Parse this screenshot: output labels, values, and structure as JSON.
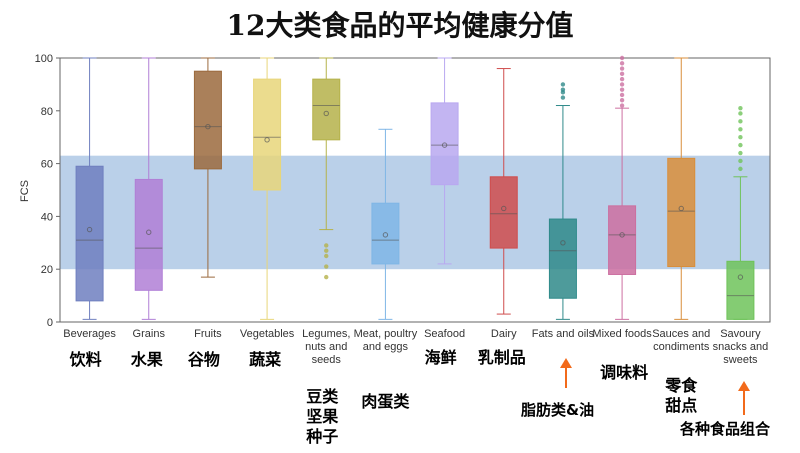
{
  "chart_data": {
    "type": "box",
    "title": "12大类食品的平均健康分值",
    "ylabel": "FCS",
    "xlabel": "",
    "ylim": [
      0,
      100
    ],
    "yticks": [
      0,
      20,
      40,
      60,
      80,
      100
    ],
    "reference_band": [
      20,
      63
    ],
    "categories": [
      {
        "label": "Beverages",
        "zh": "饮料",
        "color": "#6f7fbf",
        "min": 1,
        "q1": 8,
        "median": 31,
        "mean": 35,
        "q3": 59,
        "max": 100,
        "outliers": []
      },
      {
        "label": "Grains",
        "zh": "水果",
        "color": "#b07fd6",
        "min": 1,
        "q1": 12,
        "median": 28,
        "mean": 34,
        "q3": 54,
        "max": 100,
        "outliers": []
      },
      {
        "label": "Fruits",
        "zh": "谷物",
        "color": "#9b6a3d",
        "min": 17,
        "q1": 58,
        "median": 74,
        "mean": 74,
        "q3": 95,
        "max": 100,
        "outliers": []
      },
      {
        "label": "Vegetables",
        "zh": "蔬菜",
        "color": "#e8d67a",
        "min": 1,
        "q1": 50,
        "median": 70,
        "mean": 69,
        "q3": 92,
        "max": 100,
        "outliers": []
      },
      {
        "label": "Legumes, nuts and seeds",
        "zh": "豆类\n坚果\n种子",
        "color": "#b5b24a",
        "min": 35,
        "q1": 69,
        "median": 82,
        "mean": 79,
        "q3": 92,
        "max": 100,
        "outliers": [
          17,
          21,
          25,
          27,
          29
        ]
      },
      {
        "label": "Meat, poultry and eggs",
        "zh": "肉蛋类",
        "color": "#7fb6e6",
        "min": 1,
        "q1": 22,
        "median": 31,
        "mean": 33,
        "q3": 45,
        "max": 73,
        "outliers": []
      },
      {
        "label": "Seafood",
        "zh": "海鲜",
        "color": "#b9a8f0",
        "min": 22,
        "q1": 52,
        "median": 67,
        "mean": 67,
        "q3": 83,
        "max": 100,
        "outliers": []
      },
      {
        "label": "Dairy",
        "zh": "乳制品",
        "color": "#cf4c4c",
        "min": 3,
        "q1": 28,
        "median": 41,
        "mean": 43,
        "q3": 55,
        "max": 96,
        "outliers": []
      },
      {
        "label": "Fats and oils",
        "zh": "",
        "color": "#2f8a8a",
        "min": 1,
        "q1": 9,
        "median": 27,
        "mean": 30,
        "q3": 39,
        "max": 82,
        "outliers": [
          85,
          87,
          88,
          90
        ]
      },
      {
        "label": "Mixed foods",
        "zh": "调味料",
        "color": "#cc6fa0",
        "min": 1,
        "q1": 18,
        "median": 33,
        "mean": 33,
        "q3": 44,
        "max": 81,
        "outliers": [
          82,
          84,
          86,
          88,
          90,
          92,
          94,
          96,
          98,
          100
        ]
      },
      {
        "label": "Sauces and condiments",
        "zh": "零食\n甜点",
        "color": "#d98e3a",
        "min": 1,
        "q1": 21,
        "median": 42,
        "mean": 43,
        "q3": 62,
        "max": 100,
        "outliers": []
      },
      {
        "label": "Savoury snacks and sweets",
        "zh": "",
        "color": "#6fc35a",
        "min": 1,
        "q1": 1,
        "median": 10,
        "mean": 17,
        "q3": 23,
        "max": 55,
        "outliers": [
          58,
          61,
          64,
          67,
          70,
          73,
          76,
          79,
          81
        ]
      }
    ],
    "annotations": [
      {
        "target": "Fats and oils",
        "text": "脂肪类&油"
      },
      {
        "target": "Savoury snacks and sweets",
        "text": "各种食品组合"
      }
    ]
  }
}
